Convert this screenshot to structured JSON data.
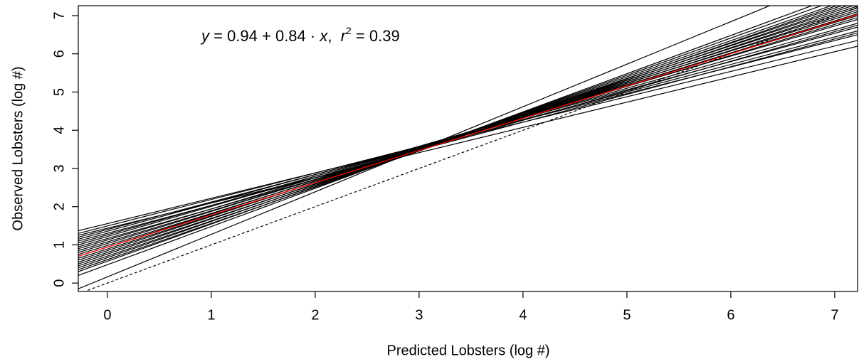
{
  "chart_data": {
    "type": "line",
    "xlabel": "Predicted Lobsters (log #)",
    "ylabel": "Observed Lobsters (log #)",
    "annotation": [
      "y",
      " = 0.94 + 0.84 · ",
      "x",
      ",  ",
      "r",
      "2",
      " = 0.39"
    ],
    "x": [
      -0.28,
      7.22
    ],
    "xlim": [
      -0.28,
      7.22
    ],
    "ylim": [
      -0.22,
      7.26
    ],
    "xticks": [
      0,
      1,
      2,
      3,
      4,
      5,
      6,
      7
    ],
    "yticks": [
      0,
      1,
      2,
      3,
      4,
      5,
      6,
      7
    ],
    "series": [
      {
        "color": "#000000",
        "values": [
          1.37,
          6.35
        ]
      },
      {
        "color": "#000000",
        "values": [
          1.3,
          6.5
        ]
      },
      {
        "color": "#000000",
        "values": [
          1.25,
          6.2
        ]
      },
      {
        "color": "#000000",
        "values": [
          1.2,
          6.6
        ]
      },
      {
        "color": "#000000",
        "values": [
          1.15,
          6.7
        ]
      },
      {
        "color": "#000000",
        "values": [
          1.1,
          6.55
        ]
      },
      {
        "color": "#000000",
        "values": [
          1.05,
          6.8
        ]
      },
      {
        "color": "#000000",
        "values": [
          1.0,
          6.9
        ]
      },
      {
        "color": "#000000",
        "values": [
          0.95,
          6.75
        ]
      },
      {
        "color": "#000000",
        "values": [
          0.9,
          7.0
        ]
      },
      {
        "color": "#000000",
        "values": [
          0.85,
          6.95
        ]
      },
      {
        "color": "#000000",
        "values": [
          0.8,
          7.1
        ]
      },
      {
        "color": "#000000",
        "values": [
          0.75,
          7.05
        ]
      },
      {
        "color": "#000000",
        "values": [
          0.7,
          7.2
        ]
      },
      {
        "color": "#000000",
        "values": [
          0.65,
          7.15
        ]
      },
      {
        "color": "#000000",
        "values": [
          0.6,
          7.3
        ]
      },
      {
        "color": "#000000",
        "values": [
          0.55,
          7.25
        ]
      },
      {
        "color": "#000000",
        "values": [
          0.5,
          7.4
        ]
      },
      {
        "color": "#000000",
        "values": [
          0.45,
          7.35
        ]
      },
      {
        "color": "#000000",
        "values": [
          0.4,
          7.5
        ]
      },
      {
        "color": "#000000",
        "values": [
          0.35,
          7.45
        ]
      },
      {
        "color": "#000000",
        "values": [
          0.3,
          7.6
        ]
      },
      {
        "color": "#000000",
        "values": [
          0.2,
          7.7
        ]
      },
      {
        "color": "#000000",
        "values": [
          -0.15,
          8.2
        ]
      },
      {
        "color": "#000000",
        "dash": true,
        "values": [
          -0.28,
          7.22
        ]
      },
      {
        "color": "#ff0000",
        "values": [
          0.704,
          7.03
        ]
      }
    ]
  }
}
